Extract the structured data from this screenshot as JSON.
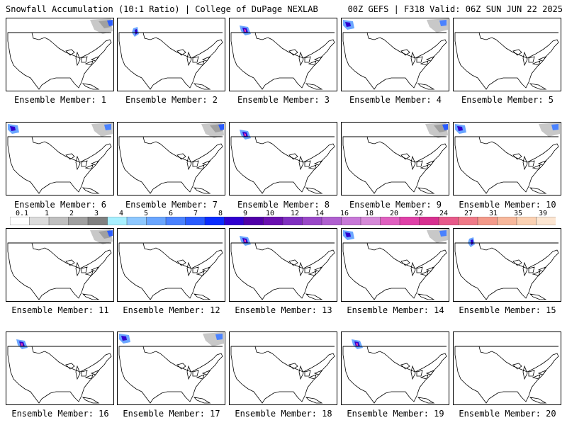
{
  "header": {
    "title": "Snowfall Accumulation (10:1 Ratio) | College of DuPage NEXLAB",
    "run": "00Z GEFS | F318 Valid: 06Z SUN JUN 22 2025"
  },
  "members": [
    {
      "label": "Ensemble Member: 1",
      "snow": "ne"
    },
    {
      "label": "Ensemble Member: 2",
      "snow": "w"
    },
    {
      "label": "Ensemble Member: 3",
      "snow": "nw"
    },
    {
      "label": "Ensemble Member: 4",
      "snow": "nw-ne"
    },
    {
      "label": "Ensemble Member: 5",
      "snow": "none"
    },
    {
      "label": "Ensemble Member: 6",
      "snow": "nw-ne"
    },
    {
      "label": "Ensemble Member: 7",
      "snow": "ne"
    },
    {
      "label": "Ensemble Member: 8",
      "snow": "nw"
    },
    {
      "label": "Ensemble Member: 9",
      "snow": "ne"
    },
    {
      "label": "Ensemble Member: 10",
      "snow": "nw-ne"
    },
    {
      "label": "Ensemble Member: 11",
      "snow": "ne"
    },
    {
      "label": "Ensemble Member: 12",
      "snow": "none"
    },
    {
      "label": "Ensemble Member: 13",
      "snow": "nw"
    },
    {
      "label": "Ensemble Member: 14",
      "snow": "nw-ne"
    },
    {
      "label": "Ensemble Member: 15",
      "snow": "w"
    },
    {
      "label": "Ensemble Member: 16",
      "snow": "nw"
    },
    {
      "label": "Ensemble Member: 17",
      "snow": "nw-ne"
    },
    {
      "label": "Ensemble Member: 18",
      "snow": "none"
    },
    {
      "label": "Ensemble Member: 19",
      "snow": "nw"
    },
    {
      "label": "Ensemble Member: 20",
      "snow": "none"
    }
  ],
  "colorbar": {
    "ticks": [
      "0.1",
      "1",
      "2",
      "3",
      "4",
      "5",
      "6",
      "7",
      "8",
      "9",
      "10",
      "12",
      "14",
      "16",
      "18",
      "20",
      "22",
      "24",
      "27",
      "31",
      "35",
      "39"
    ],
    "colors": [
      "#ffffff",
      "#dcdcdc",
      "#c0c0c0",
      "#a0a0a0",
      "#808080",
      "#a8f0ff",
      "#8ec8ff",
      "#6aa6ff",
      "#4a82ff",
      "#2a5cff",
      "#0a2cff",
      "#3000d0",
      "#5000a8",
      "#6a10b0",
      "#8030c0",
      "#9a48c8",
      "#b060d0",
      "#c878d8",
      "#d68ad8",
      "#e060c0",
      "#e040a8",
      "#d83090",
      "#e85a8a",
      "#f07a88",
      "#f49a8a",
      "#f8b89c",
      "#fcd2b4",
      "#fde6d2"
    ]
  }
}
